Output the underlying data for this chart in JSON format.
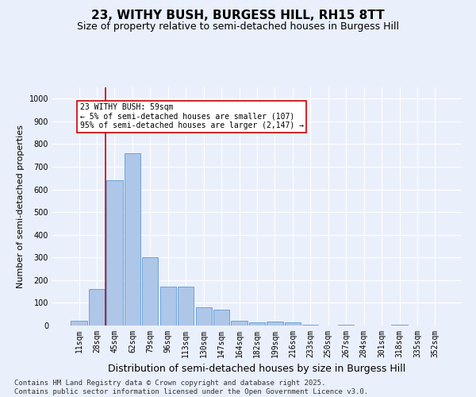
{
  "title": "23, WITHY BUSH, BURGESS HILL, RH15 8TT",
  "subtitle": "Size of property relative to semi-detached houses in Burgess Hill",
  "xlabel": "Distribution of semi-detached houses by size in Burgess Hill",
  "ylabel": "Number of semi-detached properties",
  "bar_color": "#aec6e8",
  "bar_edge_color": "#5b9bd5",
  "bg_color": "#eaf0fb",
  "grid_color": "#ffffff",
  "annotation_text": "23 WITHY BUSH: 59sqm\n← 5% of semi-detached houses are smaller (107)\n95% of semi-detached houses are larger (2,147) →",
  "annotation_box_color": "#ffffff",
  "annotation_box_edge": "#cc0000",
  "vline_color": "#cc0000",
  "vline_x_idx": 1,
  "categories": [
    "11sqm",
    "28sqm",
    "45sqm",
    "62sqm",
    "79sqm",
    "96sqm",
    "113sqm",
    "130sqm",
    "147sqm",
    "164sqm",
    "182sqm",
    "199sqm",
    "216sqm",
    "233sqm",
    "250sqm",
    "267sqm",
    "284sqm",
    "301sqm",
    "318sqm",
    "335sqm",
    "352sqm"
  ],
  "values": [
    20,
    160,
    640,
    760,
    300,
    170,
    170,
    80,
    70,
    20,
    15,
    17,
    15,
    2,
    0,
    2,
    0,
    0,
    2,
    0,
    0
  ],
  "ylim": [
    0,
    1050
  ],
  "yticks": [
    0,
    100,
    200,
    300,
    400,
    500,
    600,
    700,
    800,
    900,
    1000
  ],
  "footer": "Contains HM Land Registry data © Crown copyright and database right 2025.\nContains public sector information licensed under the Open Government Licence v3.0.",
  "title_fontsize": 11,
  "subtitle_fontsize": 9,
  "xlabel_fontsize": 9,
  "ylabel_fontsize": 8,
  "tick_fontsize": 7,
  "footer_fontsize": 6.5
}
